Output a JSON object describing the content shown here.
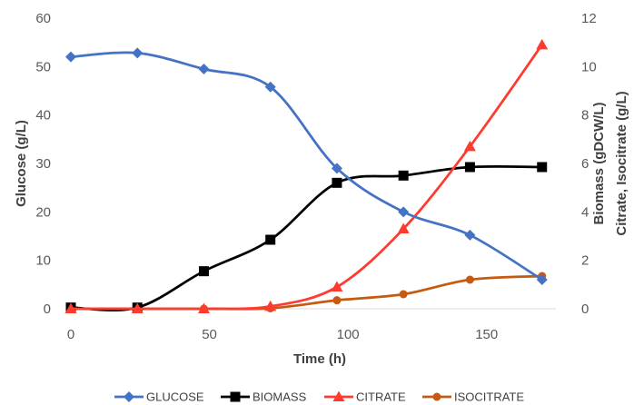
{
  "chart_data": {
    "type": "line",
    "xlabel": "Time (h)",
    "ylabel_left": "Glucose (g/L)",
    "ylabel_right_line1": "Biomass (gDCW/L)",
    "ylabel_right_line2": "Citrate, Isocitrate (g/L)",
    "xlim": [
      0,
      175
    ],
    "xticks": [
      0,
      50,
      100,
      150
    ],
    "ylim_left": [
      0,
      60
    ],
    "yticks_left": [
      0,
      10,
      20,
      30,
      40,
      50,
      60
    ],
    "ylim_right": [
      0,
      12
    ],
    "yticks_right": [
      0,
      2,
      4,
      6,
      8,
      10,
      12
    ],
    "grid": false,
    "legend_position": "bottom",
    "series": [
      {
        "name": "GLUCOSE",
        "axis": "left",
        "marker": "diamond",
        "color": "#4472C4",
        "x": [
          0,
          24,
          48,
          72,
          96,
          120,
          144,
          170
        ],
        "y": [
          52,
          52.8,
          49.5,
          45.8,
          29,
          20,
          15.2,
          6
        ]
      },
      {
        "name": "BIOMASS",
        "axis": "right",
        "marker": "square",
        "color": "#000000",
        "x": [
          0,
          24,
          48,
          72,
          96,
          120,
          144,
          170
        ],
        "y": [
          0.05,
          0.05,
          1.55,
          2.85,
          5.2,
          5.5,
          5.85,
          5.85
        ]
      },
      {
        "name": "CITRATE",
        "axis": "right",
        "marker": "triangle",
        "color": "#FF3B30",
        "x": [
          0,
          24,
          48,
          72,
          96,
          120,
          144,
          170
        ],
        "y": [
          0,
          0,
          0,
          0.1,
          0.9,
          3.3,
          6.7,
          10.9
        ]
      },
      {
        "name": "ISOCITRATE",
        "axis": "right",
        "marker": "circle",
        "color": "#C55A11",
        "x": [
          0,
          24,
          48,
          72,
          96,
          120,
          144,
          170
        ],
        "y": [
          0,
          0,
          0,
          0.02,
          0.35,
          0.6,
          1.2,
          1.35
        ]
      }
    ]
  }
}
